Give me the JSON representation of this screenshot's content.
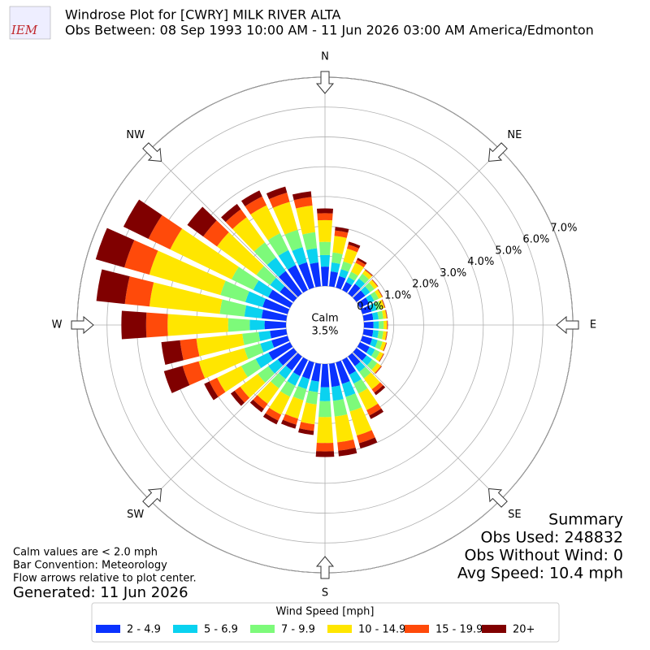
{
  "chart_data": {
    "type": "windrose",
    "title": "Windrose Plot for [CWRY] MILK RIVER  ALTA",
    "subtitle": "Obs Between: 08 Sep 1993 10:00 AM - 11 Jun 2026 03:00 AM America/Edmonton",
    "logo_text": "IEM",
    "x": [
      0,
      10,
      20,
      30,
      40,
      50,
      60,
      70,
      80,
      90,
      100,
      110,
      120,
      130,
      140,
      150,
      160,
      170,
      180,
      190,
      200,
      210,
      220,
      230,
      240,
      250,
      260,
      270,
      280,
      290,
      300,
      310,
      320,
      330,
      340,
      350
    ],
    "xticks": [
      {
        "value": 0,
        "label": "N"
      },
      {
        "value": 45,
        "label": "NE"
      },
      {
        "value": 90,
        "label": "E"
      },
      {
        "value": 135,
        "label": "SE"
      },
      {
        "value": 180,
        "label": "S"
      },
      {
        "value": 225,
        "label": "SW"
      },
      {
        "value": 270,
        "label": "W"
      },
      {
        "value": 315,
        "label": "NW"
      }
    ],
    "ylim": [
      0,
      7
    ],
    "yticks": [
      {
        "value": 0,
        "label": "0.0%"
      },
      {
        "value": 1,
        "label": "1.0%"
      },
      {
        "value": 2,
        "label": "2.0%"
      },
      {
        "value": 3,
        "label": "3.0%"
      },
      {
        "value": 4,
        "label": "4.0%"
      },
      {
        "value": 5,
        "label": "5.0%"
      },
      {
        "value": 6,
        "label": "6.0%"
      },
      {
        "value": 7,
        "label": "7.0%"
      }
    ],
    "grid": true,
    "calm_label": "Calm",
    "calm_value": 3.5,
    "calm_value_label": "3.5%",
    "legend_title": "Wind Speed [mph]",
    "series": [
      {
        "name": "2 - 4.9",
        "color": "#0a32ff",
        "values": [
          0.65,
          0.5,
          0.4,
          0.3,
          0.4,
          0.36,
          0.34,
          0.32,
          0.32,
          0.32,
          0.32,
          0.34,
          0.36,
          0.42,
          0.4,
          0.55,
          0.75,
          0.78,
          0.78,
          0.6,
          0.58,
          0.6,
          0.58,
          0.65,
          0.8,
          0.56,
          0.55,
          0.72,
          0.83,
          0.87,
          0.81,
          0.57,
          0.93,
          0.93,
          0.88,
          0.8
        ]
      },
      {
        "name": "5 - 6.9",
        "color": "#0ad2f0",
        "values": [
          0.39,
          0.3,
          0.24,
          0.18,
          0.22,
          0.2,
          0.19,
          0.18,
          0.18,
          0.18,
          0.18,
          0.19,
          0.2,
          0.23,
          0.24,
          0.33,
          0.45,
          0.47,
          0.47,
          0.36,
          0.35,
          0.36,
          0.35,
          0.39,
          0.48,
          0.39,
          0.38,
          0.5,
          0.58,
          0.6,
          0.56,
          0.4,
          0.56,
          0.56,
          0.53,
          0.48
        ]
      },
      {
        "name": "7 - 9.9",
        "color": "#7dfa7a",
        "values": [
          0.44,
          0.34,
          0.27,
          0.2,
          0.2,
          0.18,
          0.17,
          0.16,
          0.16,
          0.16,
          0.16,
          0.17,
          0.18,
          0.21,
          0.27,
          0.37,
          0.51,
          0.53,
          0.53,
          0.41,
          0.39,
          0.41,
          0.39,
          0.44,
          0.54,
          0.56,
          0.55,
          0.72,
          0.83,
          0.87,
          0.81,
          0.57,
          0.63,
          0.63,
          0.6,
          0.54
        ]
      },
      {
        "name": "10 - 14.9",
        "color": "#ffe600",
        "values": [
          0.73,
          0.56,
          0.45,
          0.34,
          0.14,
          0.13,
          0.12,
          0.11,
          0.11,
          0.11,
          0.11,
          0.12,
          0.13,
          0.15,
          0.45,
          0.62,
          0.84,
          0.87,
          0.87,
          0.67,
          0.64,
          0.67,
          0.64,
          0.73,
          0.9,
          1.59,
          1.55,
          2.03,
          2.37,
          2.48,
          2.29,
          1.63,
          1.04,
          1.04,
          0.98,
          0.9
        ]
      },
      {
        "name": "15 - 19.9",
        "color": "#ff4a0a",
        "values": [
          0.23,
          0.18,
          0.14,
          0.11,
          0.03,
          0.02,
          0.02,
          0.02,
          0.02,
          0.02,
          0.02,
          0.02,
          0.02,
          0.03,
          0.14,
          0.2,
          0.27,
          0.28,
          0.28,
          0.22,
          0.21,
          0.22,
          0.21,
          0.23,
          0.29,
          0.56,
          0.55,
          0.72,
          0.83,
          0.87,
          0.81,
          0.57,
          0.33,
          0.33,
          0.32,
          0.29
        ]
      },
      {
        "name": "20+",
        "color": "#800000",
        "values": [
          0.16,
          0.12,
          0.1,
          0.07,
          0.01,
          0.01,
          0.01,
          0.01,
          0.01,
          0.01,
          0.01,
          0.01,
          0.01,
          0.01,
          0.1,
          0.13,
          0.18,
          0.19,
          0.19,
          0.14,
          0.14,
          0.14,
          0.14,
          0.16,
          0.19,
          0.65,
          0.63,
          0.83,
          0.96,
          1.0,
          0.93,
          0.66,
          0.22,
          0.22,
          0.21,
          0.19
        ]
      }
    ],
    "notes": [
      "Calm values are < 2.0 mph",
      "Bar Convention: Meteorology",
      "Flow arrows relative to plot center."
    ],
    "generated": "Generated: 11 Jun 2026",
    "summary": [
      "Summary",
      "Obs Used: 248832",
      "Obs Without Wind: 0",
      "Avg Speed: 10.4 mph"
    ]
  }
}
